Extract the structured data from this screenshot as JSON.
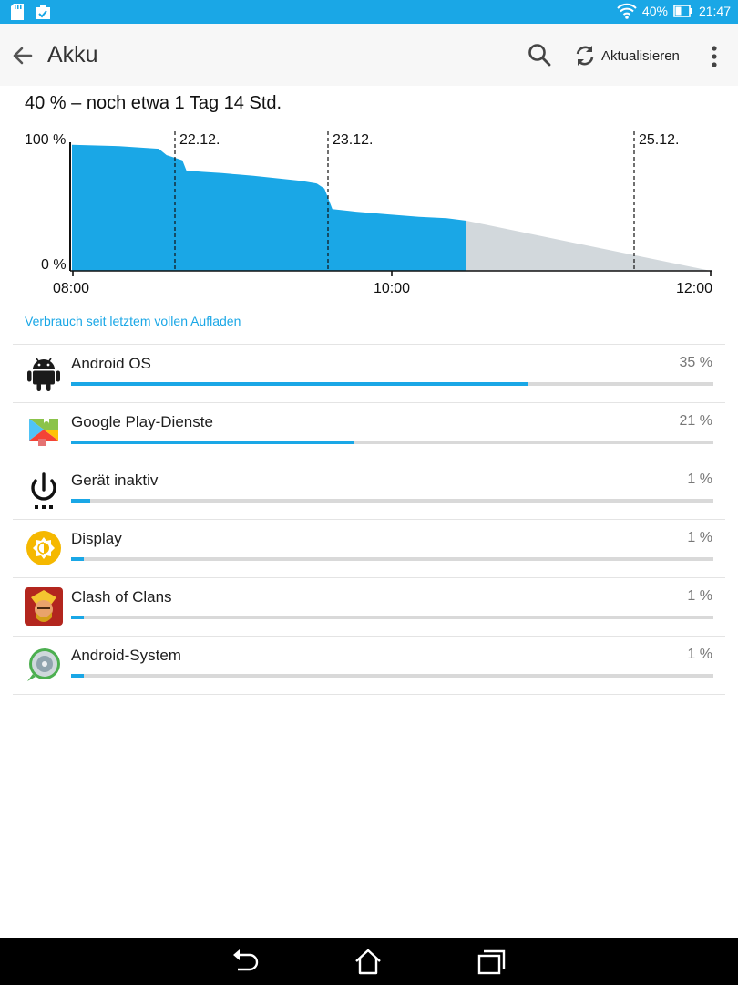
{
  "status": {
    "battery_percent": "40%",
    "time": "21:47"
  },
  "appbar": {
    "title": "Akku",
    "refresh_label": "Aktualisieren"
  },
  "summary": "40 % – noch etwa 1 Tag 14 Std.",
  "chart_data": {
    "type": "area",
    "ylabels": [
      "100 %",
      "0 %"
    ],
    "ylim": [
      0,
      100
    ],
    "xticks": [
      "08:00",
      "10:00",
      "12:00"
    ],
    "day_markers": [
      "22.12.",
      "23.12.",
      "25.12."
    ],
    "measured": [
      {
        "t": 0.0,
        "v": 98
      },
      {
        "t": 0.12,
        "v": 97
      },
      {
        "t": 0.22,
        "v": 95
      },
      {
        "t": 0.24,
        "v": 90
      },
      {
        "t": 0.26,
        "v": 88
      },
      {
        "t": 0.28,
        "v": 86
      },
      {
        "t": 0.29,
        "v": 78
      },
      {
        "t": 0.33,
        "v": 77
      },
      {
        "t": 0.38,
        "v": 76
      },
      {
        "t": 0.42,
        "v": 75
      },
      {
        "t": 0.46,
        "v": 74
      },
      {
        "t": 0.52,
        "v": 72
      },
      {
        "t": 0.58,
        "v": 70
      },
      {
        "t": 0.62,
        "v": 68
      },
      {
        "t": 0.64,
        "v": 64
      },
      {
        "t": 0.66,
        "v": 48
      },
      {
        "t": 0.72,
        "v": 46
      },
      {
        "t": 0.8,
        "v": 44
      },
      {
        "t": 0.88,
        "v": 42
      },
      {
        "t": 0.95,
        "v": 41
      },
      {
        "t": 1.0,
        "v": 39
      }
    ],
    "measured_color": "#1aa7e6",
    "prediction_color": "#d2d8dc"
  },
  "since_label": "Verbrauch seit letztem vollen Aufladen",
  "usage": [
    {
      "name": "Android OS",
      "percent_label": "35 %",
      "fraction": 0.71,
      "icon": "android-icon"
    },
    {
      "name": "Google Play-Dienste",
      "percent_label": "21 %",
      "fraction": 0.44,
      "icon": "google-play-services-icon"
    },
    {
      "name": "Gerät inaktiv",
      "percent_label": "1 %",
      "fraction": 0.03,
      "icon": "power-icon"
    },
    {
      "name": "Display",
      "percent_label": "1 %",
      "fraction": 0.02,
      "icon": "brightness-icon"
    },
    {
      "name": "Clash of Clans",
      "percent_label": "1 %",
      "fraction": 0.02,
      "icon": "clash-of-clans-icon"
    },
    {
      "name": "Android-System",
      "percent_label": "1 %",
      "fraction": 0.02,
      "icon": "android-system-icon"
    }
  ],
  "colors": {
    "accent": "#1aa7e6",
    "statusbar": "#1aa7e6"
  }
}
